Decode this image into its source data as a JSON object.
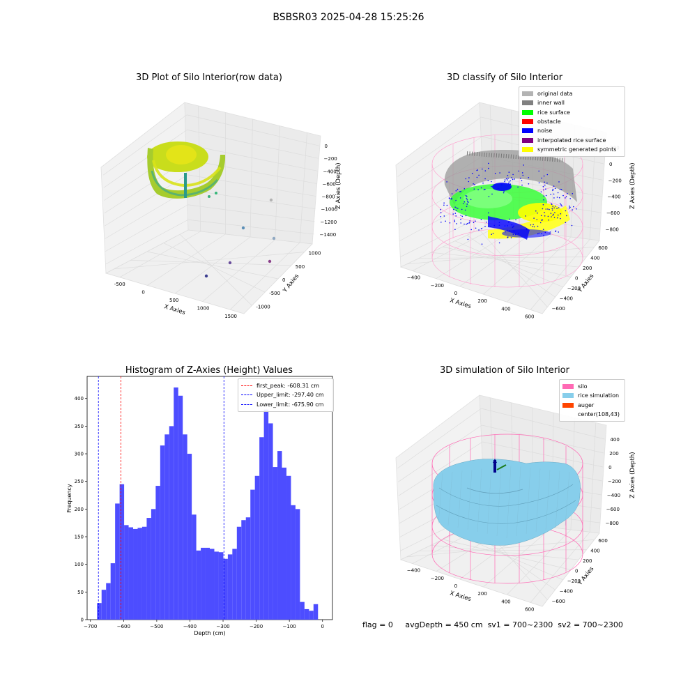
{
  "figure_title": "BSBSR03 2025-04-28 15:25:26",
  "footer": {
    "flag": "flag = 0",
    "avg_depth": "avgDepth = 450 cm",
    "sv1": "sv1 = 700~2300",
    "sv2": "sv2 = 700~2300"
  },
  "chart_data": [
    {
      "type": "scatter",
      "title": "3D Plot of Silo Interior(row data)",
      "xlabel": "X Axies",
      "ylabel": "Y Axies",
      "zlabel": "Z Axies (Depth)",
      "x_ticks": [
        "-500",
        "0",
        "500",
        "1000",
        "1500"
      ],
      "y_ticks": [
        "-1000",
        "-500",
        "0",
        "500",
        "1000"
      ],
      "z_ticks": [
        "0",
        "−200",
        "−400",
        "−600",
        "−800",
        "−1000",
        "−1200",
        "−1400"
      ],
      "grid": true,
      "outlier_colors": [
        "#b3b3b3",
        "#5b8fb7",
        "#8fa8c2",
        "#6a4e9c",
        "#8a3f8a",
        "#3b3d8f"
      ]
    },
    {
      "type": "scatter",
      "title": "3D classify of Silo Interior",
      "xlabel": "X Axies",
      "ylabel": "Y Axies",
      "zlabel": "Z Axies (Depth)",
      "x_ticks": [
        "−400",
        "−200",
        "0",
        "200",
        "400",
        "600"
      ],
      "y_ticks": [
        "−600",
        "−400",
        "−200",
        "0",
        "200",
        "400",
        "600"
      ],
      "z_ticks": [
        "200",
        "0",
        "−200",
        "−400",
        "−600",
        "−800"
      ],
      "grid": true,
      "legend_position": "top-right",
      "legend": [
        {
          "label": "original data",
          "color": "#b3b3b3"
        },
        {
          "label": "inner wall",
          "color": "#808080"
        },
        {
          "label": "rice surface",
          "color": "#00ff00"
        },
        {
          "label": "obstacle",
          "color": "#ff0000"
        },
        {
          "label": "noise",
          "color": "#0000ff"
        },
        {
          "label": "interpolated rice surface",
          "color": "#800080"
        },
        {
          "label": "symmetric generated points",
          "color": "#ffff00"
        }
      ]
    },
    {
      "type": "bar",
      "title": "Histogram of Z-Axies (Height) Values",
      "xlabel": "Depth (cm)",
      "ylabel": "Frequency",
      "xlim": [
        -710,
        30
      ],
      "ylim": [
        0,
        440
      ],
      "bin_width": 13.6,
      "bin_start": -680,
      "x_ticks": [
        "−700",
        "−600",
        "−500",
        "−400",
        "−300",
        "−200",
        "−100",
        "0"
      ],
      "y_ticks": [
        "0",
        "50",
        "100",
        "150",
        "200",
        "250",
        "300",
        "350",
        "400"
      ],
      "bar_color": "#4d4dff",
      "values": [
        30,
        54,
        66,
        102,
        210,
        245,
        171,
        167,
        164,
        166,
        168,
        184,
        200,
        242,
        315,
        335,
        350,
        420,
        405,
        335,
        300,
        190,
        125,
        130,
        130,
        128,
        123,
        122,
        110,
        118,
        128,
        168,
        180,
        185,
        235,
        260,
        330,
        380,
        355,
        276,
        305,
        275,
        260,
        207,
        200,
        32,
        19,
        16,
        28
      ],
      "vlines": [
        {
          "x": -608.31,
          "color": "#ff0000"
        },
        {
          "x": -297.4,
          "color": "#0000ff"
        },
        {
          "x": -675.9,
          "color": "#0000ff"
        }
      ],
      "legend_position": "top-right",
      "legend": [
        {
          "label": "first_peak: -608.31 cm",
          "color": "#ff0000"
        },
        {
          "label": "Upper_limit: -297.40 cm",
          "color": "#0000ff"
        },
        {
          "label": "Lower_limit: -675.90 cm",
          "color": "#0000ff"
        }
      ]
    },
    {
      "type": "scatter",
      "title": "3D simulation of Silo Interior",
      "xlabel": "X Axies",
      "ylabel": "Y Axies",
      "zlabel": "Z Axies (Depth)",
      "x_ticks": [
        "−400",
        "−200",
        "0",
        "200",
        "400",
        "600"
      ],
      "y_ticks": [
        "−600",
        "−400",
        "−200",
        "0",
        "200",
        "400",
        "600"
      ],
      "z_ticks": [
        "400",
        "200",
        "0",
        "−200",
        "−400",
        "−600",
        "−800"
      ],
      "grid": true,
      "legend_position": "top-right",
      "legend": [
        {
          "label": "silo",
          "color": "#ff69b4"
        },
        {
          "label": "rice simulation",
          "color": "#87ceeb"
        },
        {
          "label": "auger",
          "color": "#ff4500"
        },
        {
          "label": "center(108,43)",
          "color": ""
        }
      ]
    }
  ]
}
